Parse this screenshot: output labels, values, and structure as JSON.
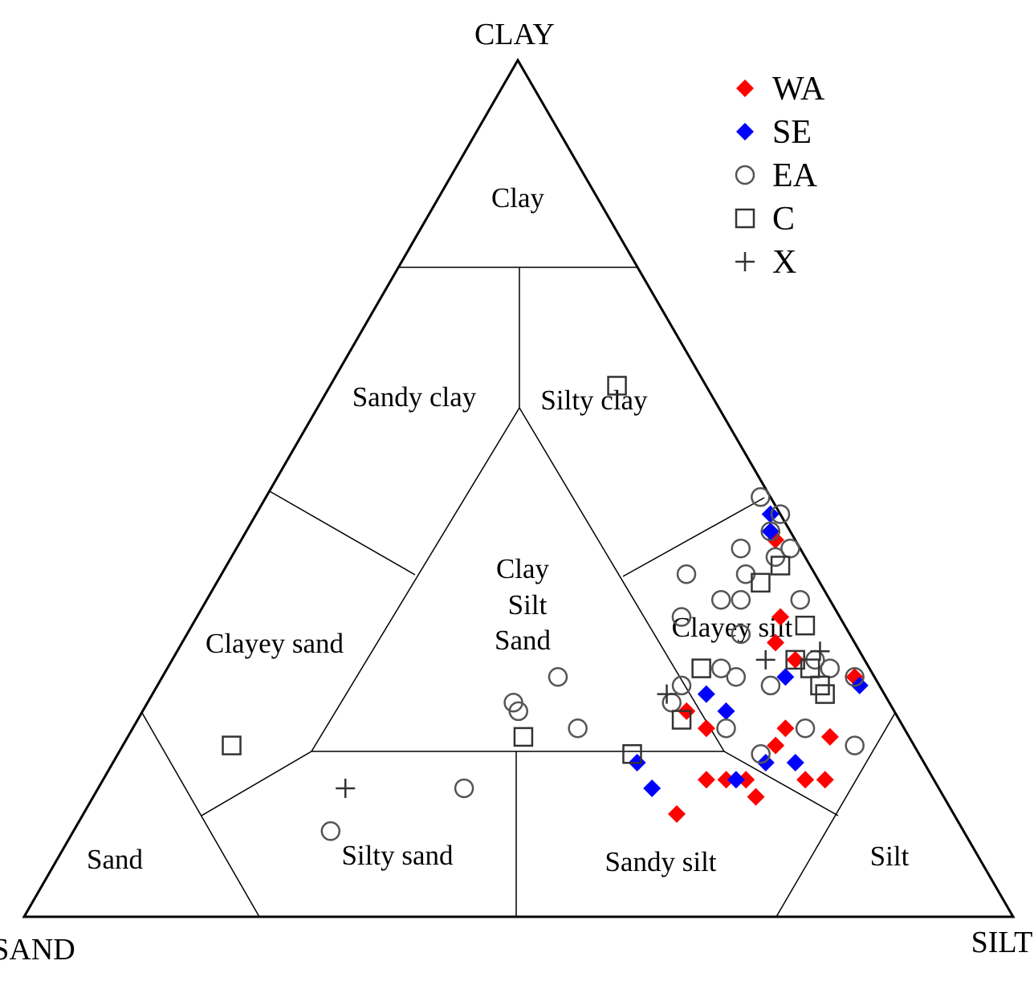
{
  "chart_data": {
    "type": "scatter",
    "subtype": "ternary",
    "vertices": {
      "top": "CLAY",
      "left": "SAND",
      "right": "SILT"
    },
    "regions": [
      "Clay",
      "Sandy clay",
      "Silty clay",
      "Clayey sand",
      "Clay Silt Sand",
      "Clayey silt",
      "Sand",
      "Silty sand",
      "Sandy silt",
      "Silt"
    ],
    "region_labels": {
      "clay": "Clay",
      "sandy_clay": "Sandy clay",
      "silty_clay": "Silty clay",
      "clayey_sand": "Clayey sand",
      "css_line1": "Clay",
      "css_line2": "Silt",
      "css_line3": "Sand",
      "clayey_silt": "Clayey silt",
      "sand": "Sand",
      "silty_sand": "Silty sand",
      "sandy_silt": "Sandy silt",
      "silt": "Silt"
    },
    "legend": {
      "placement": "top-right"
    },
    "series": [
      {
        "name": "WA",
        "marker": "filled-diamond",
        "color": "#ff0000",
        "points": [
          {
            "clay": 44,
            "silt": 54
          },
          {
            "clay": 35,
            "silt": 59
          },
          {
            "clay": 32,
            "silt": 60
          },
          {
            "clay": 30,
            "silt": 63
          },
          {
            "clay": 28,
            "silt": 70
          },
          {
            "clay": 24,
            "silt": 55
          },
          {
            "clay": 22,
            "silt": 58
          },
          {
            "clay": 22,
            "silt": 66
          },
          {
            "clay": 20,
            "silt": 66
          },
          {
            "clay": 21,
            "silt": 71
          },
          {
            "clay": 16,
            "silt": 73
          },
          {
            "clay": 16,
            "silt": 61
          },
          {
            "clay": 16,
            "silt": 63
          },
          {
            "clay": 16,
            "silt": 65
          },
          {
            "clay": 16,
            "silt": 71
          },
          {
            "clay": 14,
            "silt": 67
          },
          {
            "clay": 12,
            "silt": 60
          }
        ]
      },
      {
        "name": "SE",
        "marker": "filled-diamond",
        "color": "#0000ff",
        "points": [
          {
            "clay": 47,
            "silt": 52
          },
          {
            "clay": 45,
            "silt": 53
          },
          {
            "clay": 28,
            "silt": 63
          },
          {
            "clay": 27,
            "silt": 71
          },
          {
            "clay": 26,
            "silt": 56
          },
          {
            "clay": 24,
            "silt": 59
          },
          {
            "clay": 18,
            "silt": 66
          },
          {
            "clay": 18,
            "silt": 69
          },
          {
            "clay": 18,
            "silt": 53
          },
          {
            "clay": 16,
            "silt": 64
          },
          {
            "clay": 15,
            "silt": 56
          }
        ]
      },
      {
        "name": "EA",
        "marker": "hollow-circle",
        "color": "#555555",
        "points": [
          {
            "clay": 49,
            "silt": 50
          },
          {
            "clay": 47,
            "silt": 53
          },
          {
            "clay": 45,
            "silt": 53
          },
          {
            "clay": 43,
            "silt": 56
          },
          {
            "clay": 43,
            "silt": 51
          },
          {
            "clay": 42,
            "silt": 55
          },
          {
            "clay": 40,
            "silt": 47
          },
          {
            "clay": 40,
            "silt": 53
          },
          {
            "clay": 37,
            "silt": 60
          },
          {
            "clay": 37,
            "silt": 52
          },
          {
            "clay": 37,
            "silt": 54
          },
          {
            "clay": 35,
            "silt": 49
          },
          {
            "clay": 33,
            "silt": 56
          },
          {
            "clay": 30,
            "silt": 65
          },
          {
            "clay": 29,
            "silt": 67
          },
          {
            "clay": 29,
            "silt": 56
          },
          {
            "clay": 28,
            "silt": 58
          },
          {
            "clay": 28,
            "silt": 70
          },
          {
            "clay": 27,
            "silt": 53
          },
          {
            "clay": 28,
            "silt": 40
          },
          {
            "clay": 27,
            "silt": 62
          },
          {
            "clay": 25,
            "silt": 53
          },
          {
            "clay": 25,
            "silt": 37
          },
          {
            "clay": 24,
            "silt": 38
          },
          {
            "clay": 22,
            "silt": 60
          },
          {
            "clay": 22,
            "silt": 68
          },
          {
            "clay": 22,
            "silt": 45
          },
          {
            "clay": 20,
            "silt": 74
          },
          {
            "clay": 19,
            "silt": 65
          },
          {
            "clay": 15,
            "silt": 37
          },
          {
            "clay": 10,
            "silt": 26
          }
        ]
      },
      {
        "name": "C",
        "marker": "hollow-square",
        "color": "#333333",
        "points": [
          {
            "clay": 62,
            "silt": 29
          },
          {
            "clay": 41,
            "silt": 56
          },
          {
            "clay": 39,
            "silt": 55
          },
          {
            "clay": 34,
            "silt": 62
          },
          {
            "clay": 30,
            "silt": 63
          },
          {
            "clay": 29,
            "silt": 54
          },
          {
            "clay": 29,
            "silt": 65
          },
          {
            "clay": 27,
            "silt": 67
          },
          {
            "clay": 26,
            "silt": 68
          },
          {
            "clay": 23,
            "silt": 55
          },
          {
            "clay": 21,
            "silt": 40
          },
          {
            "clay": 20,
            "silt": 11
          },
          {
            "clay": 19,
            "silt": 52
          }
        ]
      },
      {
        "name": "X",
        "marker": "plus",
        "color": "#333333",
        "points": [
          {
            "clay": 31,
            "silt": 65
          },
          {
            "clay": 30,
            "silt": 60
          },
          {
            "clay": 26,
            "silt": 52
          },
          {
            "clay": 15,
            "silt": 25
          }
        ]
      }
    ]
  }
}
